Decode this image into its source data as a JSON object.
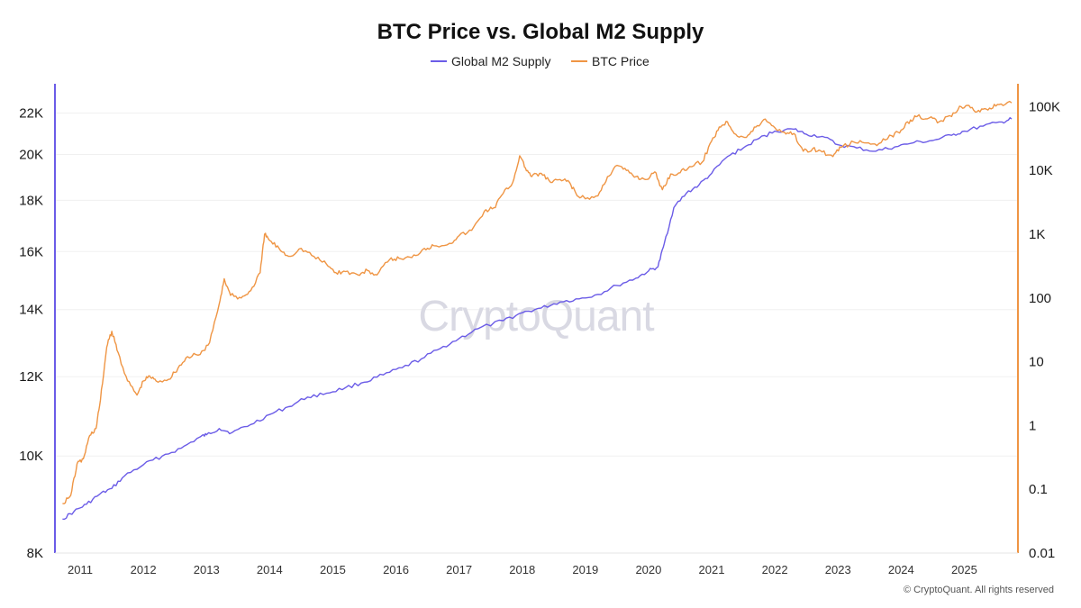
{
  "chart_data": {
    "type": "line",
    "title": "BTC Price vs. Global M2 Supply",
    "legend_position": "top-center",
    "watermark": "CryptoQuant",
    "copyright": "© CryptoQuant. All rights reserved",
    "colors": {
      "m2": "#6b5ce7",
      "btc": "#ef9544"
    },
    "x_ticks": [
      "2011",
      "2012",
      "2013",
      "2014",
      "2015",
      "2016",
      "2017",
      "2018",
      "2019",
      "2020",
      "2021",
      "2022",
      "2023",
      "2024",
      "2025"
    ],
    "xlim": [
      2010.6,
      2025.85
    ],
    "y_left": {
      "scale": "log",
      "range": [
        8000,
        23000
      ],
      "ticks": [
        {
          "value": 8000,
          "label": "8K"
        },
        {
          "value": 10000,
          "label": "10K"
        },
        {
          "value": 12000,
          "label": "12K"
        },
        {
          "value": 14000,
          "label": "14K"
        },
        {
          "value": 16000,
          "label": "16K"
        },
        {
          "value": 18000,
          "label": "18K"
        },
        {
          "value": 20000,
          "label": "20K"
        },
        {
          "value": 22000,
          "label": "22K"
        }
      ]
    },
    "y_right": {
      "scale": "log",
      "range": [
        0.01,
        160000
      ],
      "ticks": [
        {
          "value": 0.01,
          "label": "0.01"
        },
        {
          "value": 0.1,
          "label": "0.1"
        },
        {
          "value": 1,
          "label": "1"
        },
        {
          "value": 10,
          "label": "10"
        },
        {
          "value": 100,
          "label": "100"
        },
        {
          "value": 1000,
          "label": "1K"
        },
        {
          "value": 10000,
          "label": "10K"
        },
        {
          "value": 100000,
          "label": "100K"
        }
      ]
    },
    "series": [
      {
        "name": "Global M2 Supply",
        "axis": "left",
        "points": [
          [
            2010.72,
            8650
          ],
          [
            2010.9,
            8800
          ],
          [
            2011.1,
            8950
          ],
          [
            2011.3,
            9150
          ],
          [
            2011.5,
            9280
          ],
          [
            2011.7,
            9550
          ],
          [
            2012.0,
            9800
          ],
          [
            2012.3,
            10000
          ],
          [
            2012.6,
            10180
          ],
          [
            2012.9,
            10450
          ],
          [
            2013.0,
            10500
          ],
          [
            2013.2,
            10650
          ],
          [
            2013.4,
            10550
          ],
          [
            2013.7,
            10750
          ],
          [
            2014.0,
            11000
          ],
          [
            2014.3,
            11200
          ],
          [
            2014.6,
            11450
          ],
          [
            2014.9,
            11550
          ],
          [
            2015.2,
            11700
          ],
          [
            2015.5,
            11850
          ],
          [
            2015.8,
            12050
          ],
          [
            2016.1,
            12250
          ],
          [
            2016.4,
            12500
          ],
          [
            2016.7,
            12800
          ],
          [
            2017.0,
            13100
          ],
          [
            2017.3,
            13400
          ],
          [
            2017.7,
            13650
          ],
          [
            2018.0,
            13900
          ],
          [
            2018.3,
            14050
          ],
          [
            2018.6,
            14250
          ],
          [
            2018.9,
            14350
          ],
          [
            2019.2,
            14500
          ],
          [
            2019.5,
            14800
          ],
          [
            2019.8,
            15050
          ],
          [
            2020.0,
            15300
          ],
          [
            2020.15,
            15450
          ],
          [
            2020.25,
            16300
          ],
          [
            2020.4,
            17700
          ],
          [
            2020.6,
            18300
          ],
          [
            2020.8,
            18650
          ],
          [
            2021.0,
            19150
          ],
          [
            2021.25,
            19900
          ],
          [
            2021.5,
            20300
          ],
          [
            2021.75,
            20750
          ],
          [
            2022.0,
            21100
          ],
          [
            2022.3,
            21200
          ],
          [
            2022.5,
            20950
          ],
          [
            2022.75,
            20850
          ],
          [
            2023.0,
            20450
          ],
          [
            2023.3,
            20300
          ],
          [
            2023.6,
            20150
          ],
          [
            2023.9,
            20350
          ],
          [
            2024.2,
            20550
          ],
          [
            2024.5,
            20650
          ],
          [
            2024.8,
            20900
          ],
          [
            2025.0,
            21100
          ],
          [
            2025.3,
            21350
          ],
          [
            2025.6,
            21550
          ],
          [
            2025.75,
            21700
          ]
        ]
      },
      {
        "name": "BTC Price",
        "axis": "right",
        "points": [
          [
            2010.72,
            0.06
          ],
          [
            2010.85,
            0.08
          ],
          [
            2010.95,
            0.25
          ],
          [
            2011.05,
            0.3
          ],
          [
            2011.15,
            0.7
          ],
          [
            2011.25,
            0.9
          ],
          [
            2011.32,
            2.5
          ],
          [
            2011.42,
            17
          ],
          [
            2011.5,
            30
          ],
          [
            2011.6,
            14
          ],
          [
            2011.75,
            5
          ],
          [
            2011.9,
            3
          ],
          [
            2012.0,
            5
          ],
          [
            2012.1,
            6
          ],
          [
            2012.2,
            5
          ],
          [
            2012.4,
            5.3
          ],
          [
            2012.55,
            8
          ],
          [
            2012.7,
            12
          ],
          [
            2012.9,
            13
          ],
          [
            2013.05,
            20
          ],
          [
            2013.2,
            80
          ],
          [
            2013.28,
            200
          ],
          [
            2013.38,
            110
          ],
          [
            2013.55,
            100
          ],
          [
            2013.7,
            130
          ],
          [
            2013.85,
            250
          ],
          [
            2013.92,
            1000
          ],
          [
            2014.0,
            800
          ],
          [
            2014.15,
            600
          ],
          [
            2014.3,
            450
          ],
          [
            2014.5,
            600
          ],
          [
            2014.7,
            450
          ],
          [
            2014.9,
            340
          ],
          [
            2015.05,
            250
          ],
          [
            2015.2,
            260
          ],
          [
            2015.4,
            230
          ],
          [
            2015.55,
            270
          ],
          [
            2015.7,
            230
          ],
          [
            2015.9,
            400
          ],
          [
            2016.05,
            420
          ],
          [
            2016.25,
            430
          ],
          [
            2016.45,
            600
          ],
          [
            2016.6,
            660
          ],
          [
            2016.85,
            720
          ],
          [
            2017.0,
            950
          ],
          [
            2017.2,
            1150
          ],
          [
            2017.4,
            2300
          ],
          [
            2017.55,
            2600
          ],
          [
            2017.7,
            4400
          ],
          [
            2017.85,
            6500
          ],
          [
            2017.96,
            17000
          ],
          [
            2018.05,
            11000
          ],
          [
            2018.15,
            8000
          ],
          [
            2018.3,
            9000
          ],
          [
            2018.45,
            6500
          ],
          [
            2018.6,
            7200
          ],
          [
            2018.75,
            6500
          ],
          [
            2018.87,
            4000
          ],
          [
            2019.0,
            3600
          ],
          [
            2019.2,
            4000
          ],
          [
            2019.35,
            8000
          ],
          [
            2019.5,
            12000
          ],
          [
            2019.65,
            10000
          ],
          [
            2019.8,
            8000
          ],
          [
            2019.95,
            7200
          ],
          [
            2020.1,
            9500
          ],
          [
            2020.22,
            5000
          ],
          [
            2020.35,
            8800
          ],
          [
            2020.5,
            9200
          ],
          [
            2020.65,
            11500
          ],
          [
            2020.85,
            13500
          ],
          [
            2021.0,
            29000
          ],
          [
            2021.12,
            48000
          ],
          [
            2021.25,
            58000
          ],
          [
            2021.38,
            37000
          ],
          [
            2021.55,
            33000
          ],
          [
            2021.7,
            48000
          ],
          [
            2021.85,
            64000
          ],
          [
            2022.0,
            47000
          ],
          [
            2022.15,
            40000
          ],
          [
            2022.3,
            38000
          ],
          [
            2022.45,
            20000
          ],
          [
            2022.6,
            22000
          ],
          [
            2022.75,
            19500
          ],
          [
            2022.92,
            16500
          ],
          [
            2023.05,
            23000
          ],
          [
            2023.25,
            28000
          ],
          [
            2023.45,
            27000
          ],
          [
            2023.65,
            26500
          ],
          [
            2023.85,
            35000
          ],
          [
            2024.0,
            43000
          ],
          [
            2024.15,
            62000
          ],
          [
            2024.25,
            70000
          ],
          [
            2024.45,
            67000
          ],
          [
            2024.6,
            58000
          ],
          [
            2024.8,
            70000
          ],
          [
            2024.95,
            100000
          ],
          [
            2025.1,
            96000
          ],
          [
            2025.25,
            83000
          ],
          [
            2025.4,
            95000
          ],
          [
            2025.55,
            108000
          ],
          [
            2025.75,
            115000
          ]
        ]
      }
    ]
  }
}
